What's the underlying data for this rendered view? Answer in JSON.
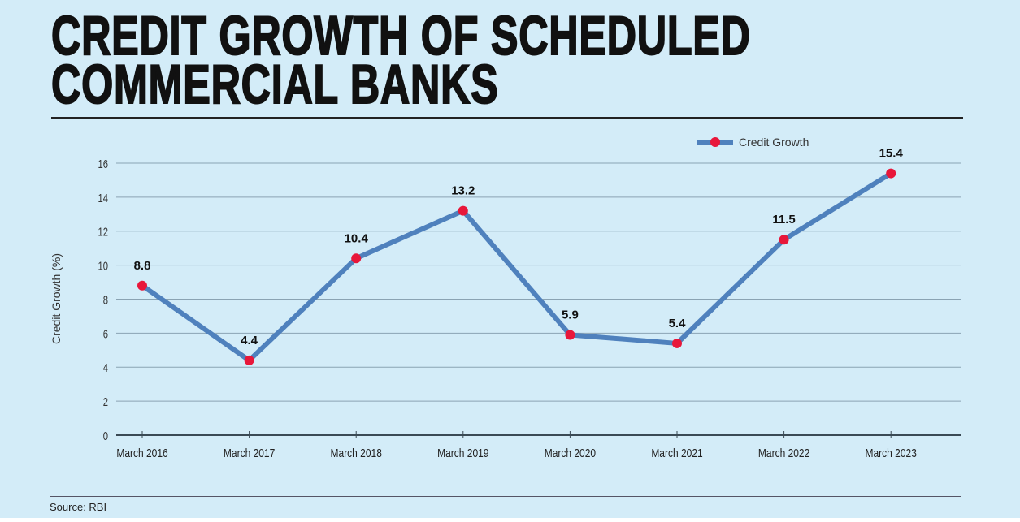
{
  "title_lines": [
    "CREDIT GROWTH OF SCHEDULED",
    "COMMERCIAL BANKS"
  ],
  "source": "Source: RBI",
  "colors": {
    "background": "#d3ecf8",
    "line": "#4f81bd",
    "marker": "#e8173a"
  },
  "chart_data": {
    "type": "line",
    "title": "CREDIT GROWTH OF SCHEDULED COMMERCIAL BANKS",
    "xlabel": "",
    "ylabel": "Credit Growth  (%)",
    "categories": [
      "March 2016",
      "March 2017",
      "March 2018",
      "March 2019",
      "March 2020",
      "March 2021",
      "March 2022",
      "March 2023"
    ],
    "series": [
      {
        "name": "Credit Growth",
        "values": [
          8.8,
          4.4,
          10.4,
          13.2,
          5.9,
          5.4,
          11.5,
          15.4
        ]
      }
    ],
    "data_labels": [
      "8.8",
      "4.4",
      "10.4",
      "13.2",
      "5.9",
      "5.4",
      "11.5",
      "15.4"
    ],
    "ylim": [
      0,
      16
    ],
    "yticks": [
      0,
      2,
      4,
      6,
      8,
      10,
      12,
      14,
      16
    ],
    "grid": true,
    "legend": "top-right"
  }
}
